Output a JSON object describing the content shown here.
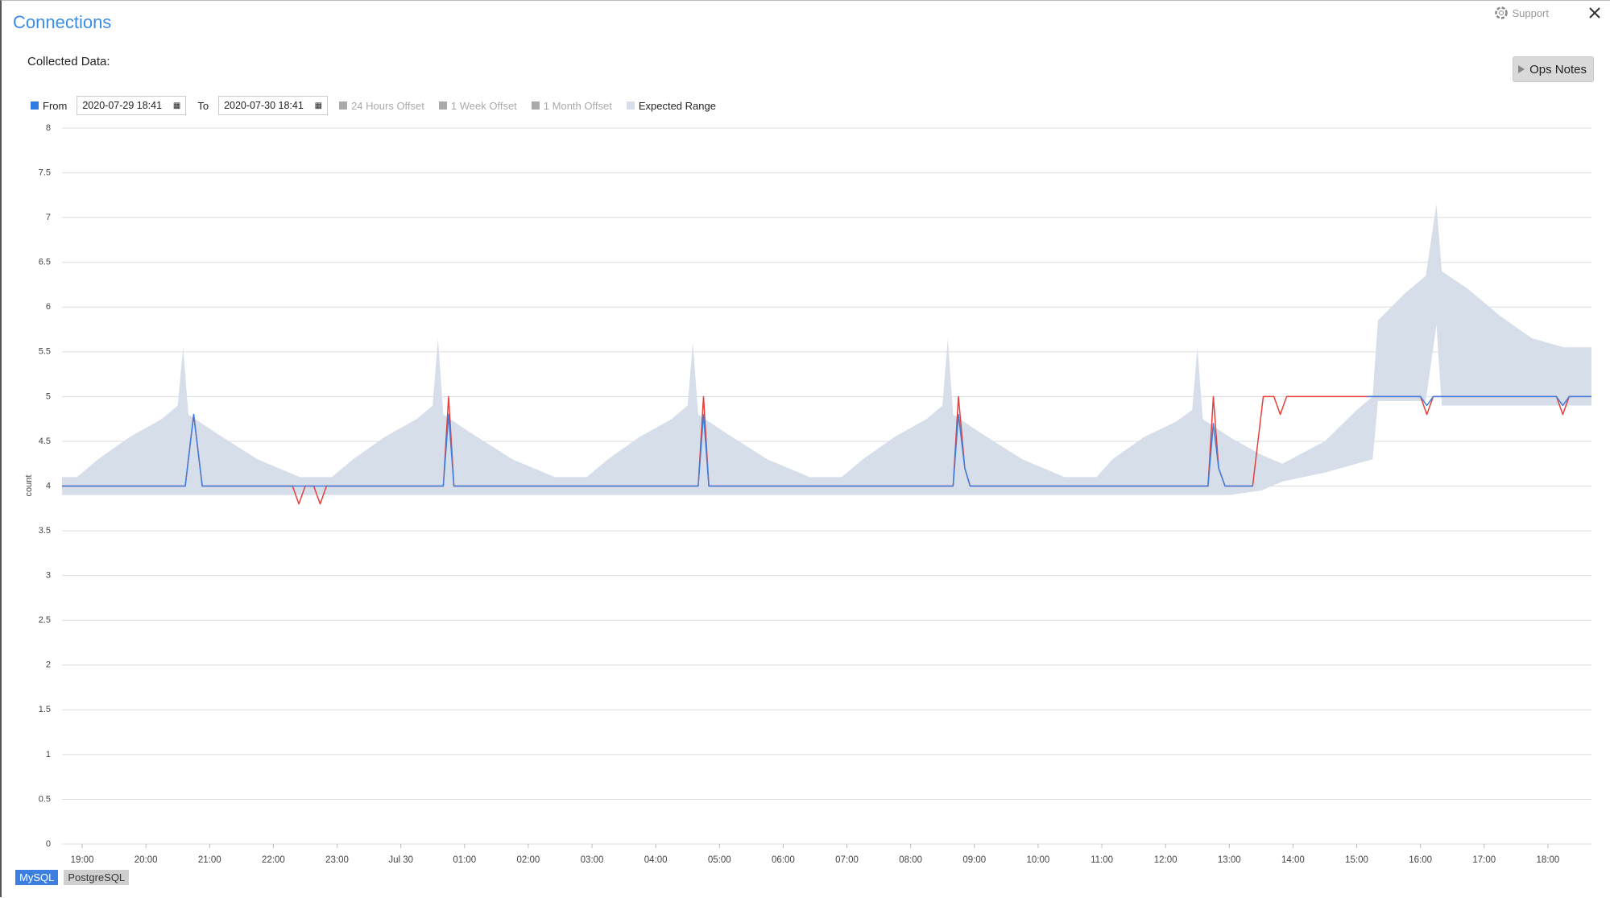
{
  "header": {
    "title": "Connections",
    "support": "Support",
    "section": "Collected Data:",
    "ops_notes": "Ops Notes"
  },
  "toolbar": {
    "from": "From",
    "to": "To",
    "offsets": [
      "24 Hours Offset",
      "1 Week Offset",
      "1 Month Offset"
    ]
  },
  "chart_data": {
    "type": "line",
    "ylabel": "count",
    "xlim": [
      "2020-07-29 18:41",
      "2020-07-30 18:41"
    ],
    "ylim": [
      0,
      8
    ],
    "yticks": [
      0,
      0.5,
      1,
      1.5,
      2,
      2.5,
      3,
      3.5,
      4,
      4.5,
      5,
      5.5,
      6,
      6.5,
      7,
      7.5,
      8
    ],
    "xticks": [
      {
        "value": "2020-07-29 19:00",
        "label": "19:00"
      },
      {
        "value": "2020-07-29 20:00",
        "label": "20:00"
      },
      {
        "value": "2020-07-29 21:00",
        "label": "21:00"
      },
      {
        "value": "2020-07-29 22:00",
        "label": "22:00"
      },
      {
        "value": "2020-07-29 23:00",
        "label": "23:00"
      },
      {
        "value": "2020-07-30 00:00",
        "label": "Jul 30"
      },
      {
        "value": "2020-07-30 01:00",
        "label": "01:00"
      },
      {
        "value": "2020-07-30 02:00",
        "label": "02:00"
      },
      {
        "value": "2020-07-30 03:00",
        "label": "03:00"
      },
      {
        "value": "2020-07-30 04:00",
        "label": "04:00"
      },
      {
        "value": "2020-07-30 05:00",
        "label": "05:00"
      },
      {
        "value": "2020-07-30 06:00",
        "label": "06:00"
      },
      {
        "value": "2020-07-30 07:00",
        "label": "07:00"
      },
      {
        "value": "2020-07-30 08:00",
        "label": "08:00"
      },
      {
        "value": "2020-07-30 09:00",
        "label": "09:00"
      },
      {
        "value": "2020-07-30 10:00",
        "label": "10:00"
      },
      {
        "value": "2020-07-30 11:00",
        "label": "11:00"
      },
      {
        "value": "2020-07-30 12:00",
        "label": "12:00"
      },
      {
        "value": "2020-07-30 13:00",
        "label": "13:00"
      },
      {
        "value": "2020-07-30 14:00",
        "label": "14:00"
      },
      {
        "value": "2020-07-30 15:00",
        "label": "15:00"
      },
      {
        "value": "2020-07-30 16:00",
        "label": "16:00"
      },
      {
        "value": "2020-07-30 17:00",
        "label": "17:00"
      },
      {
        "value": "2020-07-30 18:00",
        "label": "18:00"
      }
    ],
    "grid": true,
    "x": [
      "2020-07-29 18:41",
      "2020-07-29 20:37",
      "2020-07-29 20:45",
      "2020-07-29 20:53",
      "2020-07-29 22:18",
      "2020-07-29 22:24",
      "2020-07-29 22:30",
      "2020-07-29 22:38",
      "2020-07-29 22:44",
      "2020-07-29 22:50",
      "2020-07-30 00:40",
      "2020-07-30 00:45",
      "2020-07-30 00:50",
      "2020-07-30 04:40",
      "2020-07-30 04:45",
      "2020-07-30 04:50",
      "2020-07-30 08:40",
      "2020-07-30 08:45",
      "2020-07-30 08:51",
      "2020-07-30 08:56",
      "2020-07-30 12:40",
      "2020-07-30 12:45",
      "2020-07-30 12:50",
      "2020-07-30 12:56",
      "2020-07-30 13:22",
      "2020-07-30 13:32",
      "2020-07-30 13:42",
      "2020-07-30 13:48",
      "2020-07-30 13:54",
      "2020-07-30 15:10",
      "2020-07-30 16:00",
      "2020-07-30 16:06",
      "2020-07-30 16:12",
      "2020-07-30 18:08",
      "2020-07-30 18:14",
      "2020-07-30 18:20",
      "2020-07-30 18:41"
    ],
    "series": [
      {
        "name": "PostgreSQL",
        "color": "#e5403b",
        "values": [
          4,
          4,
          4.8,
          4,
          4,
          3.8,
          4,
          4,
          3.8,
          4,
          4,
          5,
          4,
          4,
          5,
          4,
          4,
          5,
          4.2,
          4,
          4,
          5,
          4.2,
          4,
          4,
          5,
          5,
          4.8,
          5,
          5,
          5,
          4.8,
          5,
          5,
          4.8,
          5,
          5
        ]
      },
      {
        "name": "MySQL",
        "color": "#3d7fe0",
        "values": [
          4,
          4,
          4.8,
          4,
          4,
          4,
          4,
          4,
          4,
          4,
          4,
          4.8,
          4,
          4,
          4.8,
          4,
          4,
          4.8,
          4.2,
          4,
          4,
          4.7,
          4.2,
          4,
          4,
          null,
          null,
          null,
          null,
          5,
          5,
          4.9,
          5,
          5,
          4.9,
          5,
          5
        ]
      }
    ],
    "range": {
      "name": "Expected Range",
      "color": "#d6deea",
      "x": [
        "2020-07-29 18:41",
        "2020-07-29 18:55",
        "2020-07-29 19:15",
        "2020-07-29 19:45",
        "2020-07-29 20:15",
        "2020-07-29 20:30",
        "2020-07-29 20:35",
        "2020-07-29 20:40",
        "2020-07-29 21:05",
        "2020-07-29 21:45",
        "2020-07-29 22:25",
        "2020-07-29 22:55",
        "2020-07-29 23:15",
        "2020-07-29 23:45",
        "2020-07-30 00:15",
        "2020-07-30 00:30",
        "2020-07-30 00:35",
        "2020-07-30 00:40",
        "2020-07-30 01:05",
        "2020-07-30 01:45",
        "2020-07-30 02:25",
        "2020-07-30 02:55",
        "2020-07-30 03:15",
        "2020-07-30 03:45",
        "2020-07-30 04:15",
        "2020-07-30 04:30",
        "2020-07-30 04:35",
        "2020-07-30 04:40",
        "2020-07-30 05:05",
        "2020-07-30 05:45",
        "2020-07-30 06:25",
        "2020-07-30 06:55",
        "2020-07-30 07:15",
        "2020-07-30 07:45",
        "2020-07-30 08:15",
        "2020-07-30 08:30",
        "2020-07-30 08:35",
        "2020-07-30 08:40",
        "2020-07-30 09:05",
        "2020-07-30 09:45",
        "2020-07-30 10:25",
        "2020-07-30 10:55",
        "2020-07-30 11:10",
        "2020-07-30 11:40",
        "2020-07-30 12:10",
        "2020-07-30 12:25",
        "2020-07-30 12:30",
        "2020-07-30 12:35",
        "2020-07-30 13:00",
        "2020-07-30 13:30",
        "2020-07-30 13:50",
        "2020-07-30 14:30",
        "2020-07-30 15:00",
        "2020-07-30 15:15",
        "2020-07-30 15:20",
        "2020-07-30 15:45",
        "2020-07-30 16:05",
        "2020-07-30 16:15",
        "2020-07-30 16:20",
        "2020-07-30 16:45",
        "2020-07-30 17:15",
        "2020-07-30 17:45",
        "2020-07-30 18:15",
        "2020-07-30 18:41"
      ],
      "upper": [
        4.1,
        4.1,
        4.3,
        4.55,
        4.75,
        4.9,
        5.55,
        4.8,
        4.6,
        4.3,
        4.1,
        4.1,
        4.3,
        4.55,
        4.75,
        4.9,
        5.65,
        4.8,
        4.6,
        4.3,
        4.1,
        4.1,
        4.3,
        4.55,
        4.75,
        4.9,
        5.6,
        4.8,
        4.6,
        4.3,
        4.1,
        4.1,
        4.3,
        4.55,
        4.75,
        4.9,
        5.65,
        4.8,
        4.6,
        4.3,
        4.1,
        4.1,
        4.3,
        4.55,
        4.72,
        4.85,
        5.55,
        4.75,
        4.55,
        4.35,
        4.25,
        4.5,
        4.85,
        5.0,
        5.85,
        6.15,
        6.35,
        7.15,
        6.4,
        6.2,
        5.9,
        5.65,
        5.55,
        5.55
      ],
      "lower": [
        3.9,
        3.9,
        3.9,
        3.9,
        3.9,
        3.9,
        3.9,
        3.9,
        3.9,
        3.9,
        3.9,
        3.9,
        3.9,
        3.9,
        3.9,
        3.9,
        3.9,
        3.9,
        3.9,
        3.9,
        3.9,
        3.9,
        3.9,
        3.9,
        3.9,
        3.9,
        3.9,
        3.9,
        3.9,
        3.9,
        3.9,
        3.9,
        3.9,
        3.9,
        3.9,
        3.9,
        3.9,
        3.9,
        3.9,
        3.9,
        3.9,
        3.9,
        3.9,
        3.9,
        3.9,
        3.9,
        3.9,
        3.9,
        3.9,
        3.95,
        4.05,
        4.15,
        4.25,
        4.3,
        4.95,
        4.95,
        4.95,
        5.8,
        4.9,
        4.9,
        4.9,
        4.9,
        4.9,
        4.9
      ]
    }
  }
}
